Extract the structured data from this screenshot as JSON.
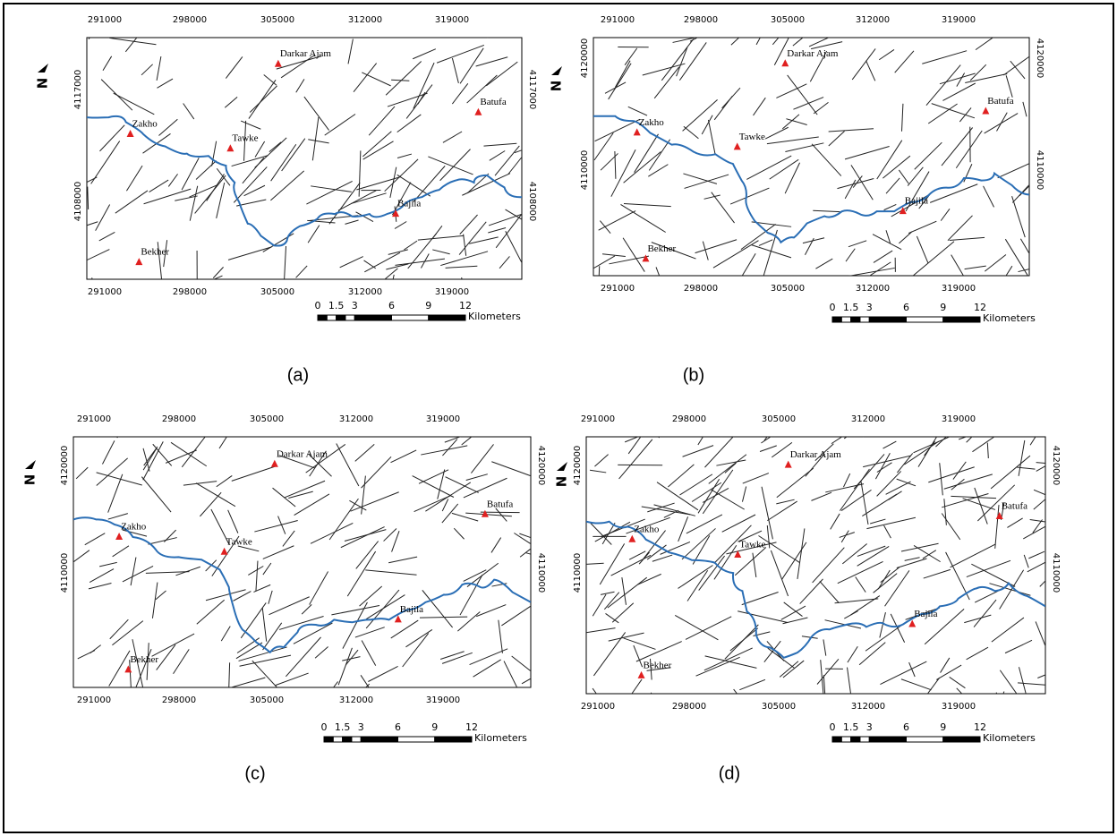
{
  "north_label": "N",
  "panels": [
    {
      "caption": "(a)",
      "x_ticks": [
        "291000",
        "298000",
        "305000",
        "312000",
        "319000"
      ],
      "y_ticks": [
        "4117000",
        "4108000"
      ],
      "places": [
        "Darkar Ajam",
        "Zakho",
        "Tawke",
        "Batufa",
        "Bajila",
        "Bekher"
      ],
      "scale_labels": [
        "0",
        "1.5",
        "3",
        "6",
        "9",
        "12"
      ],
      "scale_unit": "Kilometers"
    },
    {
      "caption": "(b)",
      "x_ticks": [
        "291000",
        "298000",
        "305000",
        "312000",
        "319000"
      ],
      "y_ticks": [
        "4120000",
        "4110000"
      ],
      "places": [
        "Darkar Ajam",
        "Zakho",
        "Tawke",
        "Batufa",
        "Bajila",
        "Bekher"
      ],
      "scale_labels": [
        "0",
        "1.5",
        "3",
        "6",
        "9",
        "12"
      ],
      "scale_unit": "Kilometers"
    },
    {
      "caption": "(c)",
      "x_ticks": [
        "291000",
        "298000",
        "305000",
        "312000",
        "319000"
      ],
      "y_ticks": [
        "4120000",
        "4110000"
      ],
      "places": [
        "Darkar Ajam",
        "Zakho",
        "Tawke",
        "Batufa",
        "Bajila",
        "Bekher"
      ],
      "scale_labels": [
        "0",
        "1.5",
        "3",
        "6",
        "9",
        "12"
      ],
      "scale_unit": "Kilometers"
    },
    {
      "caption": "(d)",
      "x_ticks": [
        "291000",
        "298000",
        "305000",
        "312000",
        "319000"
      ],
      "y_ticks": [
        "4120000",
        "4110000"
      ],
      "places": [
        "Darkar Ajam",
        "Zakho",
        "Tawke",
        "Batufa",
        "Bajila",
        "Bekher"
      ],
      "scale_labels": [
        "0",
        "1.5",
        "3",
        "6",
        "9",
        "12"
      ],
      "scale_unit": "Kilometers"
    }
  ]
}
